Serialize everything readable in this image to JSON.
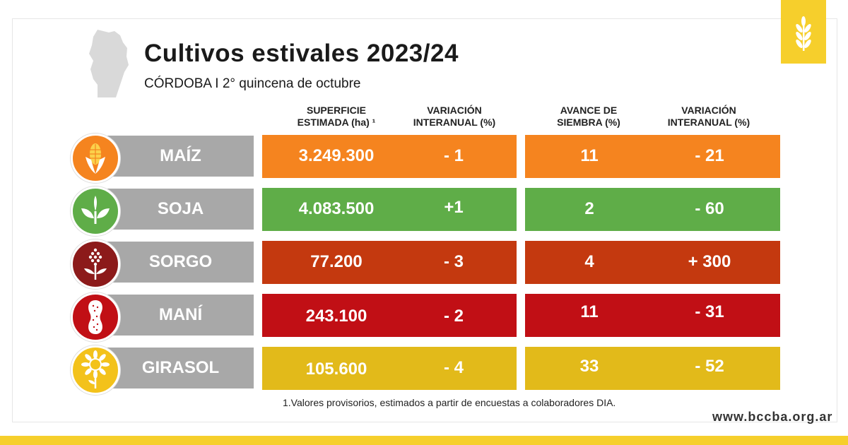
{
  "header": {
    "title": "Cultivos estivales 2023/24",
    "subtitle": "CÓRDOBA I 2° quincena de octubre"
  },
  "columns": {
    "superficie": [
      "SUPERFICIE",
      "ESTIMADA (ha) ¹"
    ],
    "variacion1": [
      "VARIACIÓN",
      "INTERANUAL (%)"
    ],
    "avance": [
      "AVANCE DE",
      "SIEMBRA (%)"
    ],
    "variacion2": [
      "VARIACIÓN",
      "INTERANUAL (%)"
    ]
  },
  "rows": [
    {
      "crop": "MAÍZ",
      "icon": "corn-icon",
      "color": "#f5841f",
      "superficie": "3.249.300",
      "var1": "- 1",
      "avance": "11",
      "var2": "- 21"
    },
    {
      "crop": "SOJA",
      "icon": "soy-sprout-icon",
      "color": "#5fad48",
      "superficie": "4.083.500",
      "var1": "+1",
      "avance": "2",
      "var2": "- 60"
    },
    {
      "crop": "SORGO",
      "icon": "sorghum-icon",
      "color": "#c4390f",
      "superficie": "77.200",
      "var1": "- 3",
      "avance": "4",
      "var2": "+ 300"
    },
    {
      "crop": "MANÍ",
      "icon": "peanut-icon",
      "color": "#c10f15",
      "superficie": "243.100",
      "var1": "- 2",
      "avance": "11",
      "var2": "- 31"
    },
    {
      "crop": "GIRASOL",
      "icon": "sunflower-icon",
      "color": "#e2ba1a",
      "superficie": "105.600",
      "var1": "- 4",
      "avance": "33",
      "var2": "- 52"
    }
  ],
  "footnote": "1.Valores provisorios, estimados a partir de encuestas a colaboradores DIA.",
  "website": "www.bccba.org.ar",
  "colors": {
    "brand_yellow": "#f6cf2c",
    "label_gray": "#a8a8a8"
  },
  "logo": "wheat-icon",
  "map": "cordoba-map-icon"
}
